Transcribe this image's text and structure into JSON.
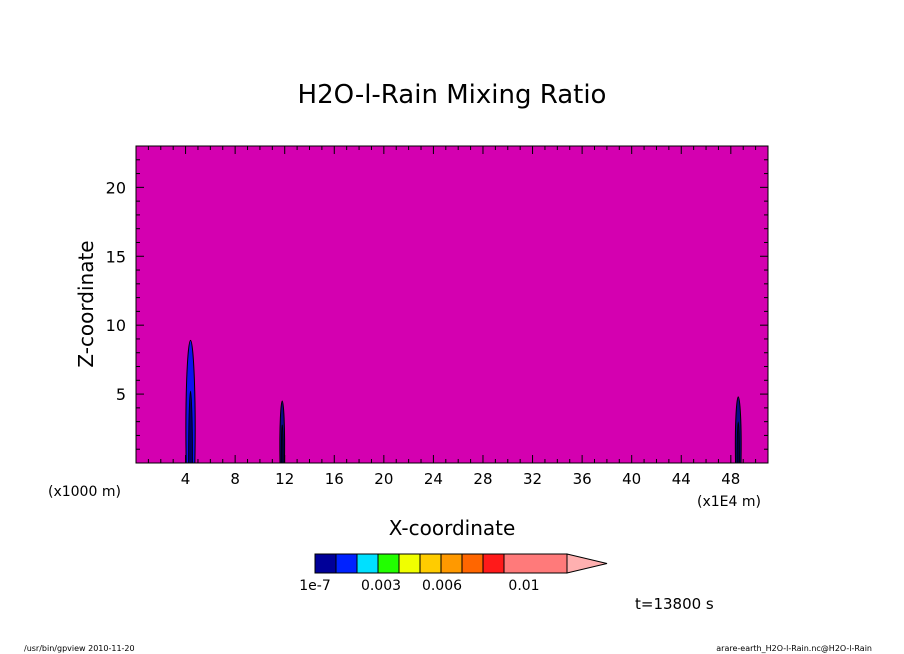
{
  "chart_data": {
    "type": "heatmap",
    "title": "H2O-l-Rain Mixing Ratio",
    "xlabel": "X-coordinate",
    "ylabel": "Z-coordinate",
    "x_units_left": "(x1000 m)",
    "x_units_right": "(x1E4 m)",
    "xlim": [
      0,
      51
    ],
    "ylim": [
      0,
      23
    ],
    "xticks": [
      4,
      8,
      12,
      16,
      20,
      24,
      28,
      32,
      36,
      40,
      44,
      48
    ],
    "yticks": [
      5,
      10,
      15,
      20
    ],
    "background_level_color": "#d400b0",
    "features": [
      {
        "x": 4.4,
        "z_top": 8.9,
        "half_width": 0.35,
        "color": "#1010ee",
        "core_color": "#000066"
      },
      {
        "x": 11.8,
        "z_top": 4.5,
        "half_width": 0.18,
        "color": "#0a0a88",
        "core_color": "#000044"
      },
      {
        "x": 48.6,
        "z_top": 4.8,
        "half_width": 0.22,
        "color": "#0a0a88",
        "core_color": "#000044"
      }
    ],
    "colorbar": {
      "colors": [
        "#000099",
        "#0022ff",
        "#00e0ff",
        "#22ff00",
        "#f0ff00",
        "#ffcc00",
        "#ff9900",
        "#ff6600",
        "#ff1a1a",
        "#ff7a7a"
      ],
      "over_color": "#ffb0b0",
      "labels": [
        "1e-7",
        "0.003",
        "0.006",
        "0.01"
      ]
    },
    "time_label": "t=13800 s"
  },
  "footer": {
    "left": "/usr/bin/gpview   2010-11-20",
    "right": "arare-earth_H2O-l-Rain.nc@H2O-l-Rain"
  }
}
